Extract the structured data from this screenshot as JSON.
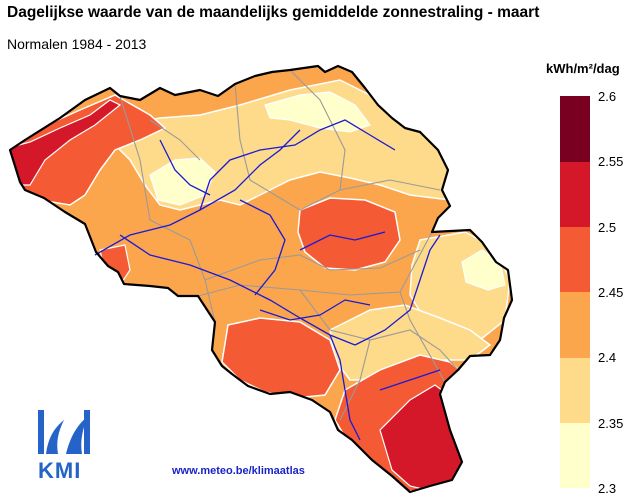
{
  "header": {
    "title": "Dagelijkse waarde van de maandelijks gemiddelde zonnestraling - maart",
    "subtitle": "Normalen 1984 - 2013"
  },
  "legend": {
    "unit": "kWh/m²/dag",
    "labels": [
      "2.6",
      "2.55",
      "2.5",
      "2.45",
      "2.4",
      "2.35",
      "2.3"
    ],
    "bins": [
      {
        "from": 2.55,
        "to": 2.6,
        "color": "#7a0022"
      },
      {
        "from": 2.5,
        "to": 2.55,
        "color": "#d4182a"
      },
      {
        "from": 2.45,
        "to": 2.5,
        "color": "#f45a33"
      },
      {
        "from": 2.4,
        "to": 2.45,
        "color": "#fba64d"
      },
      {
        "from": 2.35,
        "to": 2.4,
        "color": "#fedb8a"
      },
      {
        "from": 2.3,
        "to": 2.35,
        "color": "#ffffcc"
      }
    ]
  },
  "source": "www.meteo.be/klimaatlas",
  "logo": {
    "text": "KMI",
    "color": "#2563c8"
  },
  "colors": {
    "river": "#1a1ad6",
    "border": "#000000",
    "province_line": "#9a9a9a",
    "contour": "#ffffff"
  }
}
